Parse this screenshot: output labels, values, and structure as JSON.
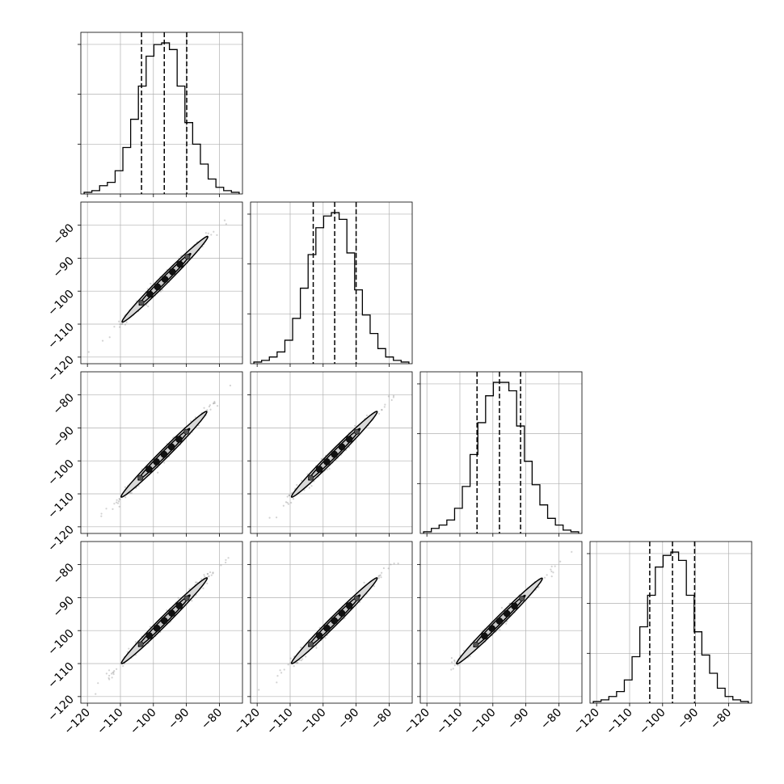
{
  "chart_data": {
    "type": "corner",
    "title": "",
    "n_params": 4,
    "axis_range": [
      -122,
      -73
    ],
    "grid": true,
    "tick_values": [
      -120,
      -110,
      -100,
      -90,
      -80
    ],
    "tick_labels": [
      "−120",
      "−110",
      "−100",
      "−90",
      "−80"
    ],
    "colors": {
      "line": "#000000",
      "grid": "#b0b0b0",
      "fill": "#d9d9d9",
      "scatter": "#7f7f7f"
    },
    "histograms": [
      {
        "param": 1,
        "quantiles": [
          -103.6,
          -96.7,
          -89.9
        ],
        "counts": [
          1,
          2,
          5,
          7,
          14,
          28,
          45,
          65,
          83,
          90,
          91,
          87,
          65,
          43,
          30,
          18,
          9,
          4,
          2,
          1
        ]
      },
      {
        "param": 2,
        "quantiles": [
          -103.0,
          -96.5,
          -90.0
        ],
        "counts": [
          1,
          2,
          4,
          7,
          14,
          27,
          45,
          65,
          81,
          88,
          90,
          86,
          66,
          44,
          29,
          18,
          9,
          4,
          2,
          1
        ]
      },
      {
        "param": 3,
        "quantiles": [
          -104.8,
          -98.0,
          -91.6
        ],
        "counts": [
          1,
          3,
          5,
          8,
          15,
          28,
          47,
          66,
          82,
          90,
          90,
          85,
          64,
          43,
          29,
          17,
          9,
          5,
          2,
          1
        ]
      },
      {
        "param": 4,
        "quantiles": [
          -103.9,
          -97.0,
          -90.3
        ],
        "counts": [
          1,
          2,
          4,
          7,
          14,
          28,
          46,
          65,
          82,
          89,
          91,
          86,
          65,
          43,
          29,
          18,
          9,
          4,
          2,
          1
        ]
      }
    ],
    "correlations": [
      {
        "x_param": 1,
        "y_param": 2,
        "center": [
          -96.5,
          -96.4
        ],
        "sigma": 6.5,
        "rho": 0.99
      },
      {
        "x_param": 1,
        "y_param": 3,
        "center": [
          -96.8,
          -98.0
        ],
        "sigma": 6.5,
        "rho": 0.99
      },
      {
        "x_param": 2,
        "y_param": 3,
        "center": [
          -96.6,
          -98.0
        ],
        "sigma": 6.5,
        "rho": 0.99
      },
      {
        "x_param": 1,
        "y_param": 4,
        "center": [
          -96.7,
          -97.0
        ],
        "sigma": 6.5,
        "rho": 0.99
      },
      {
        "x_param": 2,
        "y_param": 4,
        "center": [
          -96.6,
          -97.0
        ],
        "sigma": 6.5,
        "rho": 0.99
      },
      {
        "x_param": 3,
        "y_param": 4,
        "center": [
          -98.0,
          -97.1
        ],
        "sigma": 6.5,
        "rho": 0.99
      }
    ]
  }
}
